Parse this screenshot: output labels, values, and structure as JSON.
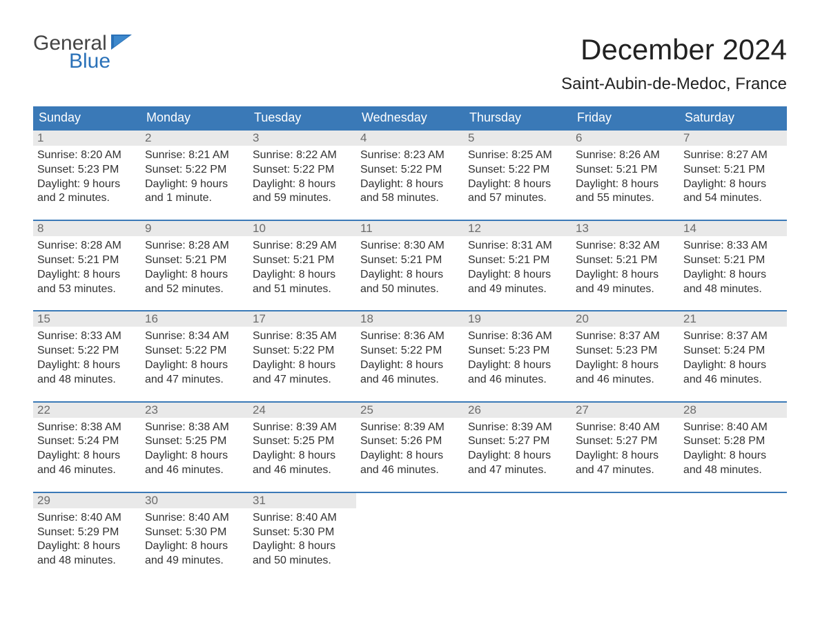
{
  "brand": {
    "line1": "General",
    "line2": "Blue",
    "text_color": "#444444",
    "accent_color": "#2a71b8"
  },
  "title": "December 2024",
  "location": "Saint-Aubin-de-Medoc, France",
  "colors": {
    "header_bg": "#3a79b7",
    "header_text": "#ffffff",
    "daynum_bg": "#e9e9e9",
    "daynum_text": "#6b6b6b",
    "body_text": "#313131",
    "week_border": "#3a79b7",
    "page_bg": "#ffffff"
  },
  "day_labels": [
    "Sunday",
    "Monday",
    "Tuesday",
    "Wednesday",
    "Thursday",
    "Friday",
    "Saturday"
  ],
  "line_prefixes": {
    "sunrise": "Sunrise: ",
    "sunset": "Sunset: ",
    "daylight": "Daylight: "
  },
  "weeks": [
    [
      {
        "n": "1",
        "sunrise": "8:20 AM",
        "sunset": "5:23 PM",
        "daylight": "9 hours and 2 minutes."
      },
      {
        "n": "2",
        "sunrise": "8:21 AM",
        "sunset": "5:22 PM",
        "daylight": "9 hours and 1 minute."
      },
      {
        "n": "3",
        "sunrise": "8:22 AM",
        "sunset": "5:22 PM",
        "daylight": "8 hours and 59 minutes."
      },
      {
        "n": "4",
        "sunrise": "8:23 AM",
        "sunset": "5:22 PM",
        "daylight": "8 hours and 58 minutes."
      },
      {
        "n": "5",
        "sunrise": "8:25 AM",
        "sunset": "5:22 PM",
        "daylight": "8 hours and 57 minutes."
      },
      {
        "n": "6",
        "sunrise": "8:26 AM",
        "sunset": "5:21 PM",
        "daylight": "8 hours and 55 minutes."
      },
      {
        "n": "7",
        "sunrise": "8:27 AM",
        "sunset": "5:21 PM",
        "daylight": "8 hours and 54 minutes."
      }
    ],
    [
      {
        "n": "8",
        "sunrise": "8:28 AM",
        "sunset": "5:21 PM",
        "daylight": "8 hours and 53 minutes."
      },
      {
        "n": "9",
        "sunrise": "8:28 AM",
        "sunset": "5:21 PM",
        "daylight": "8 hours and 52 minutes."
      },
      {
        "n": "10",
        "sunrise": "8:29 AM",
        "sunset": "5:21 PM",
        "daylight": "8 hours and 51 minutes."
      },
      {
        "n": "11",
        "sunrise": "8:30 AM",
        "sunset": "5:21 PM",
        "daylight": "8 hours and 50 minutes."
      },
      {
        "n": "12",
        "sunrise": "8:31 AM",
        "sunset": "5:21 PM",
        "daylight": "8 hours and 49 minutes."
      },
      {
        "n": "13",
        "sunrise": "8:32 AM",
        "sunset": "5:21 PM",
        "daylight": "8 hours and 49 minutes."
      },
      {
        "n": "14",
        "sunrise": "8:33 AM",
        "sunset": "5:21 PM",
        "daylight": "8 hours and 48 minutes."
      }
    ],
    [
      {
        "n": "15",
        "sunrise": "8:33 AM",
        "sunset": "5:22 PM",
        "daylight": "8 hours and 48 minutes."
      },
      {
        "n": "16",
        "sunrise": "8:34 AM",
        "sunset": "5:22 PM",
        "daylight": "8 hours and 47 minutes."
      },
      {
        "n": "17",
        "sunrise": "8:35 AM",
        "sunset": "5:22 PM",
        "daylight": "8 hours and 47 minutes."
      },
      {
        "n": "18",
        "sunrise": "8:36 AM",
        "sunset": "5:22 PM",
        "daylight": "8 hours and 46 minutes."
      },
      {
        "n": "19",
        "sunrise": "8:36 AM",
        "sunset": "5:23 PM",
        "daylight": "8 hours and 46 minutes."
      },
      {
        "n": "20",
        "sunrise": "8:37 AM",
        "sunset": "5:23 PM",
        "daylight": "8 hours and 46 minutes."
      },
      {
        "n": "21",
        "sunrise": "8:37 AM",
        "sunset": "5:24 PM",
        "daylight": "8 hours and 46 minutes."
      }
    ],
    [
      {
        "n": "22",
        "sunrise": "8:38 AM",
        "sunset": "5:24 PM",
        "daylight": "8 hours and 46 minutes."
      },
      {
        "n": "23",
        "sunrise": "8:38 AM",
        "sunset": "5:25 PM",
        "daylight": "8 hours and 46 minutes."
      },
      {
        "n": "24",
        "sunrise": "8:39 AM",
        "sunset": "5:25 PM",
        "daylight": "8 hours and 46 minutes."
      },
      {
        "n": "25",
        "sunrise": "8:39 AM",
        "sunset": "5:26 PM",
        "daylight": "8 hours and 46 minutes."
      },
      {
        "n": "26",
        "sunrise": "8:39 AM",
        "sunset": "5:27 PM",
        "daylight": "8 hours and 47 minutes."
      },
      {
        "n": "27",
        "sunrise": "8:40 AM",
        "sunset": "5:27 PM",
        "daylight": "8 hours and 47 minutes."
      },
      {
        "n": "28",
        "sunrise": "8:40 AM",
        "sunset": "5:28 PM",
        "daylight": "8 hours and 48 minutes."
      }
    ],
    [
      {
        "n": "29",
        "sunrise": "8:40 AM",
        "sunset": "5:29 PM",
        "daylight": "8 hours and 48 minutes."
      },
      {
        "n": "30",
        "sunrise": "8:40 AM",
        "sunset": "5:30 PM",
        "daylight": "8 hours and 49 minutes."
      },
      {
        "n": "31",
        "sunrise": "8:40 AM",
        "sunset": "5:30 PM",
        "daylight": "8 hours and 50 minutes."
      },
      null,
      null,
      null,
      null
    ]
  ]
}
